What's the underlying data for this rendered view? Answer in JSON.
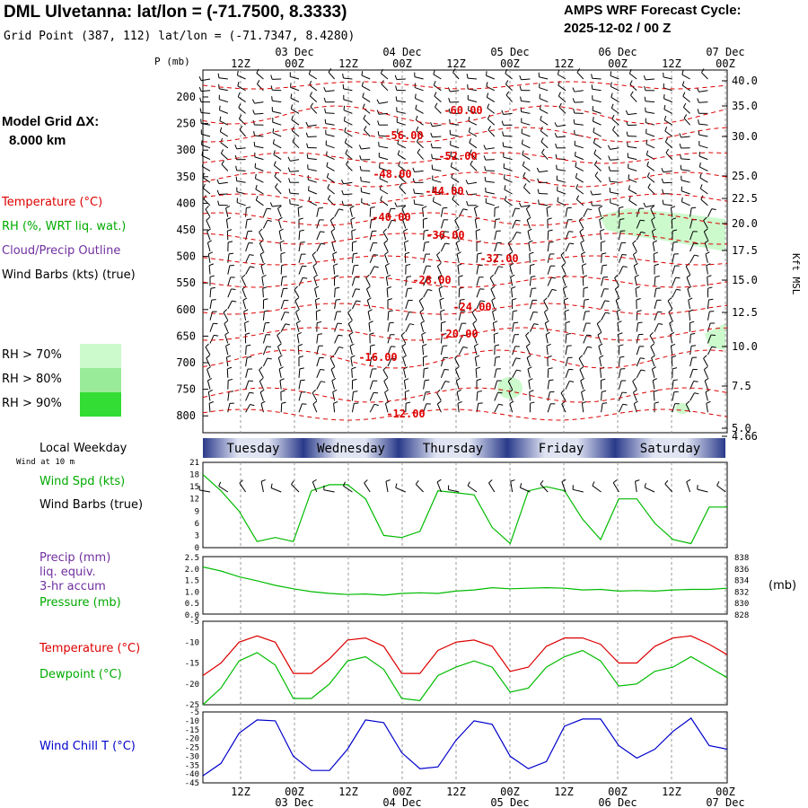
{
  "header": {
    "station_line": "DML Ulvetanna:  lat/lon = (-71.7500, 8.3333)",
    "grid_point": "Grid Point (387, 112) lat/lon = (-71.7347, 8.4280)",
    "cycle_label": "AMPS WRF Forecast Cycle:",
    "cycle_value": "2025-12-02 / 00  Z"
  },
  "side": {
    "model_grid_label": "Model Grid ΔX:",
    "model_grid_value": "8.000 km",
    "temperature": "Temperature (°C)",
    "rh": "RH (%, WRT liq. wat.)",
    "cloud": "Cloud/Precip Outline",
    "wind": "Wind Barbs (kts) (true)",
    "rh70": "RH > 70%",
    "rh80": "RH > 80%",
    "rh90": "RH > 90%",
    "p_axis": "P (mb)",
    "kft_axis": "Kft MSL",
    "local_weekday": "Local Weekday",
    "wind_at": "Wind at 10 m",
    "wind_spd": "Wind Spd (kts)",
    "wind_barbs": "Wind Barbs (true)",
    "precip": "Precip (mm)",
    "liq": "liq. equiv.",
    "accum": "3-hr accum",
    "pressure": "Pressure (mb)",
    "mb_unit": "(mb)",
    "temp2": "Temperature (°C)",
    "dewpoint": "Dewpoint (°C)",
    "windchill": "Wind Chill T (°C)"
  },
  "colors": {
    "temperature": "#dd0000",
    "dewpoint": "#00bb00",
    "windspeed": "#00bb00",
    "pressure": "#00bb00",
    "windchill": "#0000cc",
    "rh70": "#ccfacc",
    "rh80": "#99ea99",
    "rh90": "#33dd33",
    "precip_label": "#7030a0"
  },
  "chart_data": [
    {
      "type": "line",
      "name": "upper-air cross section",
      "x_ticks": [
        "12Z",
        "00Z",
        "12Z",
        "00Z",
        "12Z",
        "00Z",
        "12Z",
        "00Z",
        "12Z",
        "00Z"
      ],
      "date_labels": [
        "03 Dec",
        "04 Dec",
        "05 Dec",
        "06 Dec",
        "07 Dec"
      ],
      "y_pressure_ticks": [
        "200",
        "250",
        "300",
        "350",
        "400",
        "450",
        "500",
        "550",
        "600",
        "650",
        "700",
        "750",
        "800"
      ],
      "y_kft_ticks": [
        "40.0",
        "35.0",
        "30.0",
        "25.0",
        "22.5",
        "20.0",
        "17.5",
        "15.0",
        "12.5",
        "10.0",
        "7.5",
        "5.0",
        "4.66"
      ],
      "isotherm_labels": [
        "-60.00",
        "-56.00",
        "-52.00",
        "-48.00",
        "-44.00",
        "-40.00",
        "-36.00",
        "-32.00",
        "-28.00",
        "-24.00",
        "-20.00",
        "-16.00",
        "-12.00"
      ]
    },
    {
      "type": "line",
      "name": "wind speed 10 m",
      "ylim": [
        0,
        21
      ],
      "y_ticks": [
        "21",
        "18",
        "15",
        "12",
        "9",
        "6",
        "3",
        "0"
      ],
      "series": [
        {
          "name": "Wind Spd (kts)",
          "values": [
            18,
            14,
            9,
            1.5,
            2.5,
            1.5,
            14,
            15.5,
            15.5,
            12,
            3,
            2.5,
            4,
            14,
            13.5,
            13,
            5,
            1,
            14,
            15,
            14,
            7,
            2,
            12,
            12,
            6,
            2,
            1,
            10,
            10
          ]
        }
      ]
    },
    {
      "type": "line",
      "name": "precip and pressure",
      "ylim": [
        0,
        2.5
      ],
      "y_ticks": [
        "2.5",
        "2.0",
        "1.5",
        "1.0",
        "0.5",
        "0.0"
      ],
      "y2_ticks": [
        "838",
        "836",
        "834",
        "832",
        "830",
        "828"
      ],
      "series": [
        {
          "name": "Pressure (mb)",
          "values": [
            836.2,
            835.5,
            834.5,
            833.8,
            833.0,
            832.4,
            831.9,
            831.6,
            831.4,
            831.5,
            831.3,
            831.6,
            831.7,
            831.6,
            832.0,
            832.2,
            832.6,
            832.4,
            832.5,
            832.6,
            832.5,
            832.2,
            832.3,
            832.0,
            832.1,
            832.0,
            832.2,
            832.3,
            832.3,
            832.5
          ]
        }
      ]
    },
    {
      "type": "line",
      "name": "temperature and dewpoint",
      "ylim": [
        -25,
        -5
      ],
      "y_ticks": [
        "-5",
        "-10",
        "-15",
        "-20",
        "-25"
      ],
      "series": [
        {
          "name": "Temperature (°C)",
          "values": [
            -18,
            -15,
            -10,
            -8.5,
            -10,
            -17.5,
            -17.5,
            -14,
            -9.5,
            -9,
            -11,
            -17.5,
            -17.5,
            -12,
            -10,
            -9.5,
            -11,
            -17,
            -16,
            -11,
            -9,
            -9,
            -10.5,
            -15,
            -15,
            -11,
            -9,
            -8.5,
            -10.5,
            -13
          ]
        },
        {
          "name": "Dewpoint (°C)",
          "values": [
            -25,
            -21,
            -14.5,
            -12.5,
            -15.5,
            -23.5,
            -23.5,
            -20,
            -14.5,
            -13.5,
            -16.5,
            -23.5,
            -24,
            -18,
            -16,
            -14.5,
            -16,
            -22,
            -21,
            -16,
            -13.5,
            -12,
            -14.5,
            -20.5,
            -20,
            -17,
            -16,
            -13.5,
            -16,
            -18.5
          ]
        }
      ]
    },
    {
      "type": "line",
      "name": "wind chill",
      "ylim": [
        -45,
        -5
      ],
      "y_ticks": [
        "-5",
        "-10",
        "-15",
        "-20",
        "-25",
        "-30",
        "-35",
        "-40",
        "-45"
      ],
      "x_ticks": [
        "12Z",
        "00Z",
        "12Z",
        "00Z",
        "12Z",
        "00Z",
        "12Z",
        "00Z",
        "12Z",
        "00Z"
      ],
      "date_labels": [
        "03 Dec",
        "04 Dec",
        "05 Dec",
        "06 Dec",
        "07 Dec"
      ],
      "series": [
        {
          "name": "Wind Chill T (°C)",
          "values": [
            -41,
            -34,
            -17,
            -9.5,
            -10,
            -30,
            -38,
            -38,
            -26,
            -9.5,
            -11,
            -28,
            -37,
            -36,
            -21,
            -10,
            -12,
            -30,
            -37,
            -33,
            -13,
            -9,
            -9,
            -24,
            -31,
            -26,
            -16,
            -8.5,
            -24,
            -26
          ]
        }
      ]
    }
  ],
  "weekdays": [
    "Tuesday",
    "Wednesday",
    "Thursday",
    "Friday",
    "Saturday"
  ]
}
